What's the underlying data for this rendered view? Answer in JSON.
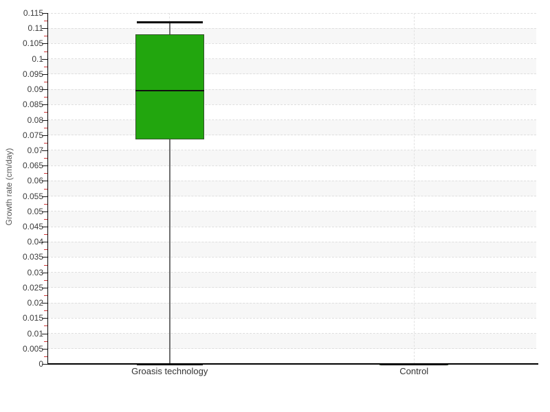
{
  "chart_data": {
    "type": "boxplot",
    "title": "",
    "xlabel": "",
    "ylabel": "Growth rate (cm/day)",
    "ylim": [
      0,
      0.115
    ],
    "ytick_step": 0.005,
    "ytick_labels": [
      "0",
      "0.005",
      "0.01",
      "0.015",
      "0.02",
      "0.025",
      "0.03",
      "0.035",
      "0.04",
      "0.045",
      "0.05",
      "0.055",
      "0.06",
      "0.065",
      "0.07",
      "0.075",
      "0.08",
      "0.085",
      "0.09",
      "0.095",
      "0.1",
      "0.105",
      "0.11",
      "0.115"
    ],
    "grid": {
      "horizontal_dashed": true,
      "vertical_dashed_at_categories": true,
      "alternating_bands": true
    },
    "legend": "none",
    "categories": [
      "Groasis technology",
      "Control"
    ],
    "series": [
      {
        "name": "Groasis technology",
        "min": 0,
        "q1": 0.0735,
        "median": 0.0895,
        "q3": 0.108,
        "max": 0.112
      },
      {
        "name": "Control",
        "min": 0,
        "q1": 0,
        "median": 0,
        "q3": 0,
        "max": 0
      }
    ],
    "colors": {
      "box_fill": "#22a60e",
      "box_border": "#33502a",
      "median_line": "#111111",
      "whisker_line": "#6f6f6f",
      "whisker_cap": "#000000",
      "axis": "#000000",
      "major_tick": "#111111",
      "minor_tick": "#cc3333",
      "band": "#f7f7f7",
      "gridline": "#dedede",
      "tick_text": "#3a3a3a",
      "axis_title_text": "#555555"
    }
  }
}
